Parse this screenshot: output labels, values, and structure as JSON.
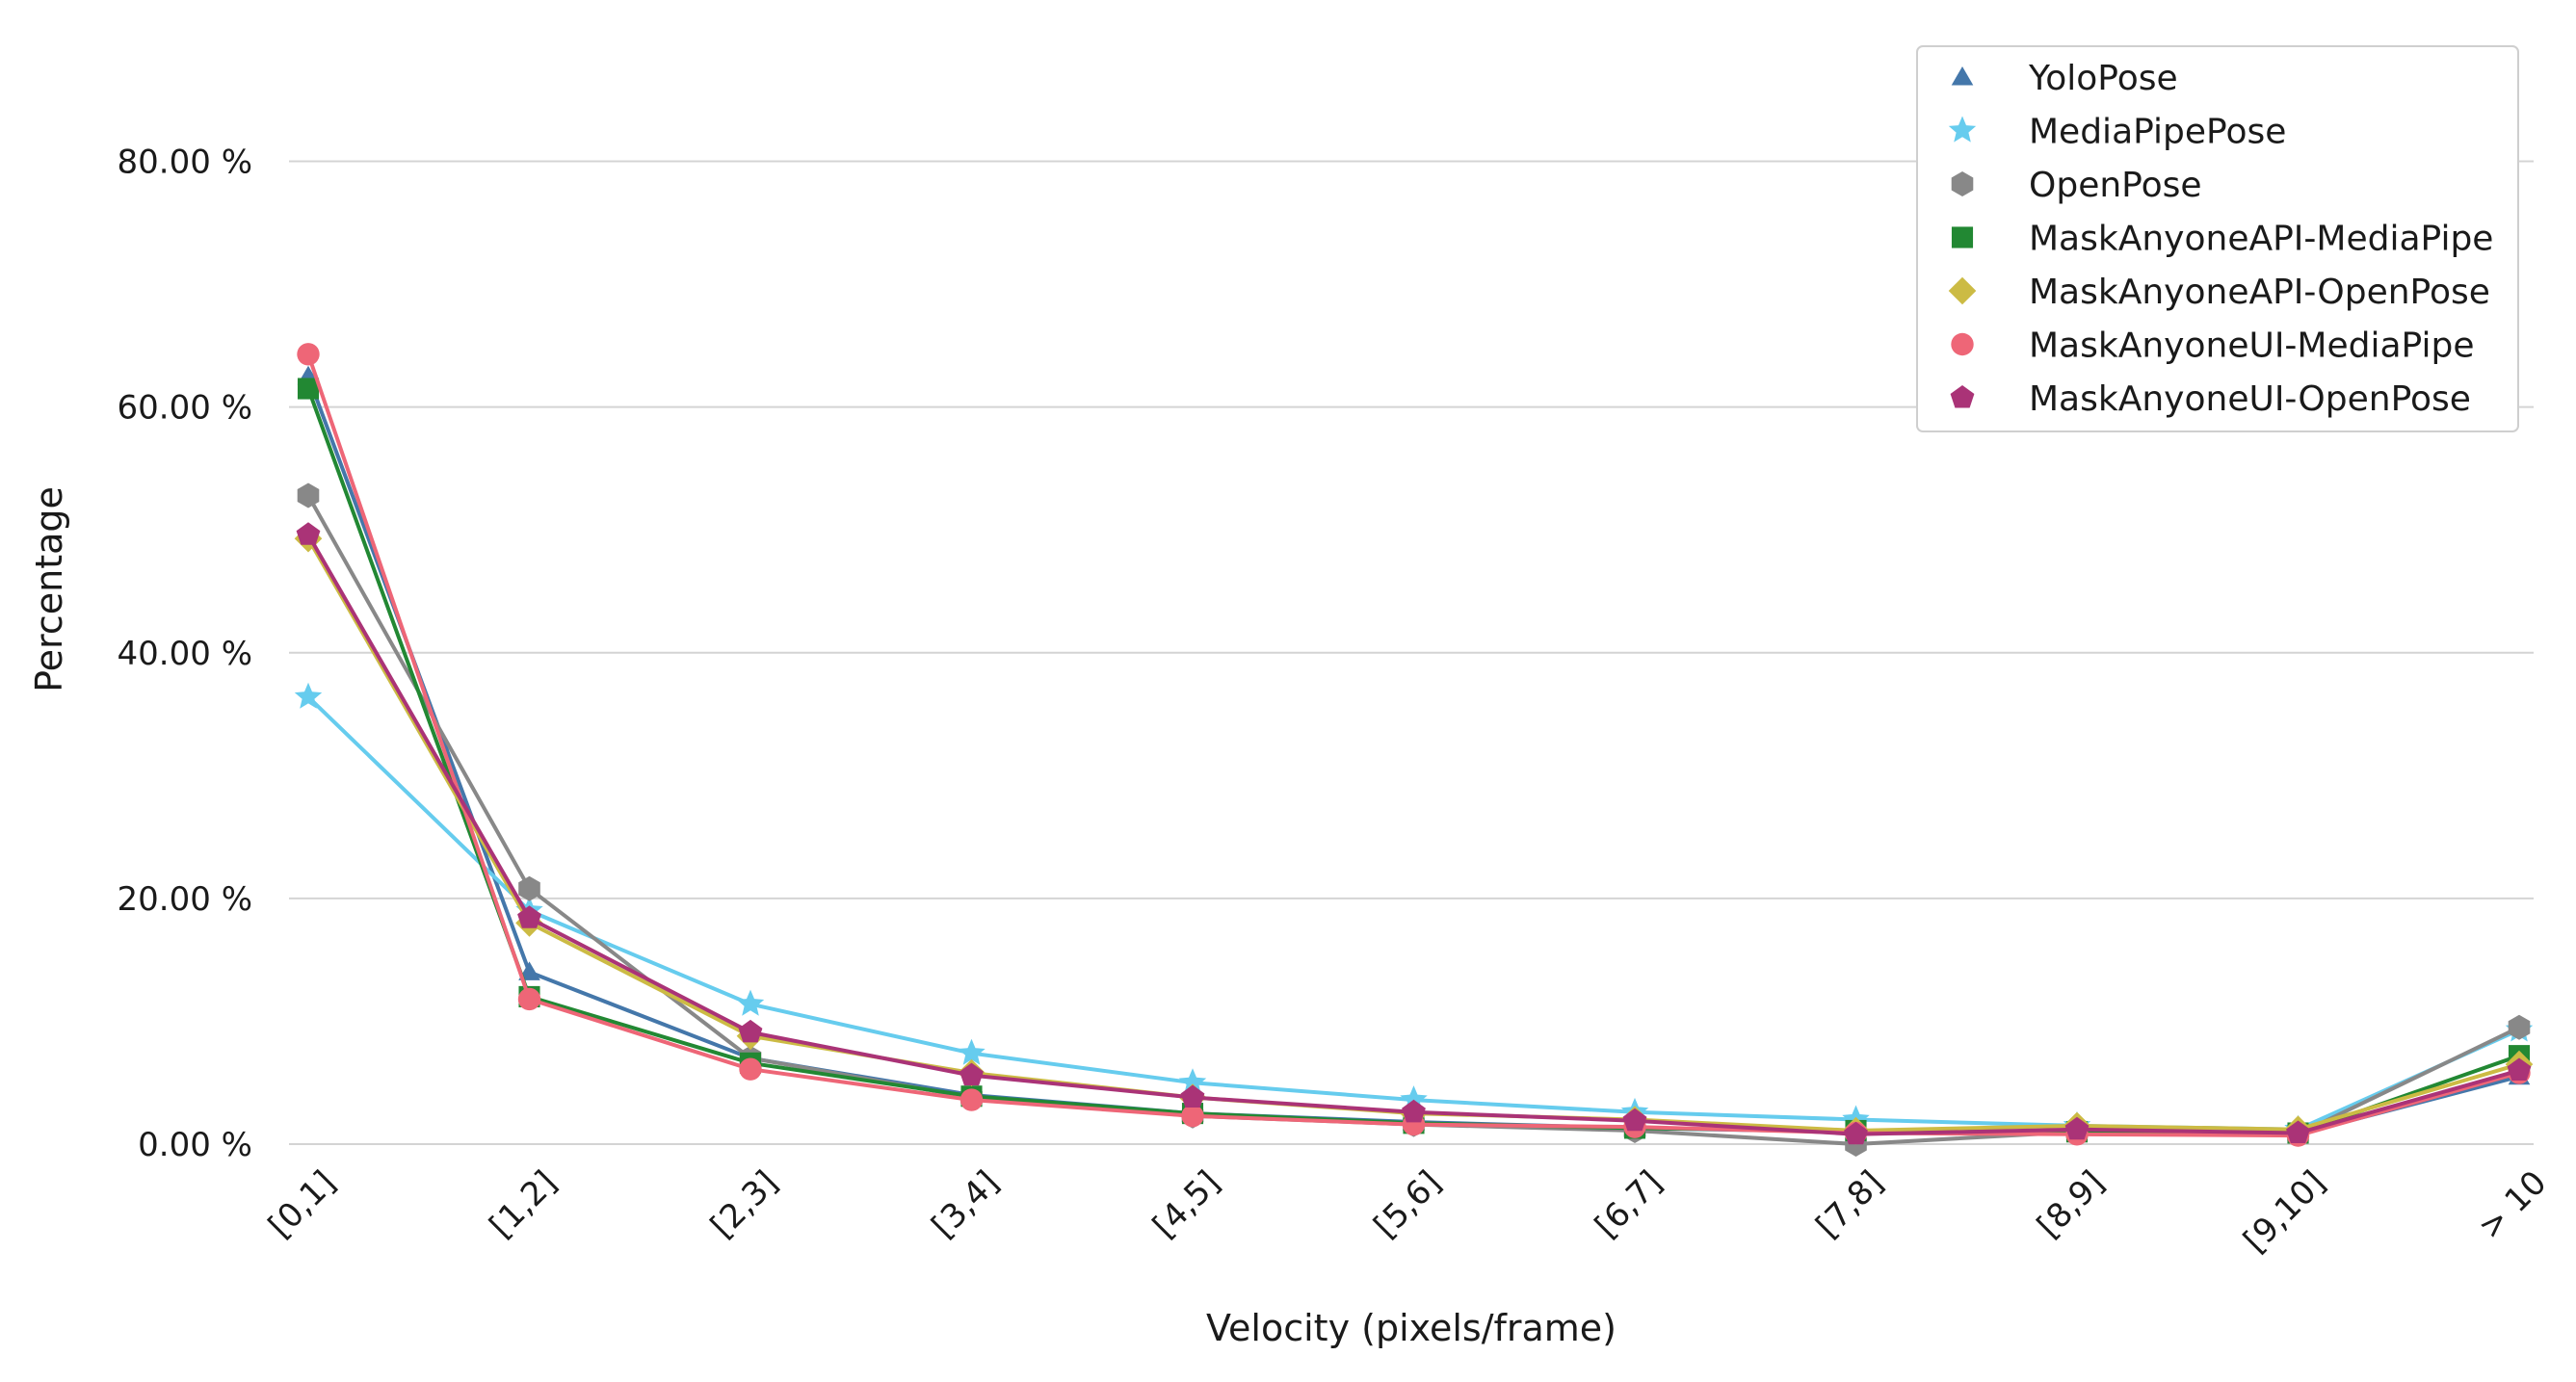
{
  "chart_data": {
    "type": "line",
    "xlabel": "Velocity (pixels/frame)",
    "ylabel": "Percentage",
    "ylim": [
      0,
      90
    ],
    "yticks": [
      0,
      20,
      40,
      60,
      80
    ],
    "ytick_labels": [
      "0.00 %",
      "20.00 %",
      "40.00 %",
      "60.00 %",
      "80.00 %"
    ],
    "categories": [
      "[0,1]",
      "[1,2]",
      "[2,3]",
      "[3,4]",
      "[4,5]",
      "[5,6]",
      "[6,7]",
      "[7,8]",
      "[8,9]",
      "[9,10]",
      "> 10"
    ],
    "grid": "horizontal",
    "legend_position": "top-right",
    "series": [
      {
        "name": "YoloPose",
        "color": "#4477aa",
        "marker": "triangle",
        "values": [
          62.5,
          14.0,
          7.0,
          4.0,
          2.5,
          1.8,
          1.3,
          1.0,
          1.0,
          0.8,
          5.5
        ]
      },
      {
        "name": "MediaPipePose",
        "color": "#66ccee",
        "marker": "star",
        "values": [
          36.4,
          19.0,
          11.4,
          7.4,
          5.0,
          3.6,
          2.6,
          2.0,
          1.5,
          1.2,
          9.3
        ]
      },
      {
        "name": "OpenPose",
        "color": "#888888",
        "marker": "hexagon",
        "values": [
          52.8,
          20.8,
          7.0,
          3.8,
          2.3,
          1.6,
          1.1,
          0.0,
          1.0,
          0.8,
          9.5
        ]
      },
      {
        "name": "MaskAnyoneAPI-MediaPipe",
        "color": "#228833",
        "marker": "square",
        "values": [
          61.5,
          12.0,
          6.6,
          3.9,
          2.5,
          1.7,
          1.3,
          1.1,
          1.0,
          0.9,
          7.2
        ]
      },
      {
        "name": "MaskAnyoneAPI-OpenPose",
        "color": "#ccbb44",
        "marker": "diamond",
        "values": [
          49.3,
          18.0,
          8.8,
          5.8,
          3.8,
          2.5,
          2.0,
          1.1,
          1.5,
          1.2,
          6.5
        ]
      },
      {
        "name": "MaskAnyoneUI-MediaPipe",
        "color": "#ee6677",
        "marker": "circle",
        "values": [
          64.3,
          11.8,
          6.1,
          3.6,
          2.3,
          1.6,
          1.4,
          0.9,
          0.8,
          0.7,
          5.8
        ]
      },
      {
        "name": "MaskAnyoneUI-OpenPose",
        "color": "#aa3377",
        "marker": "pentagon",
        "values": [
          49.6,
          18.4,
          9.1,
          5.6,
          3.8,
          2.6,
          1.9,
          0.8,
          1.2,
          0.9,
          6.0
        ]
      }
    ]
  }
}
